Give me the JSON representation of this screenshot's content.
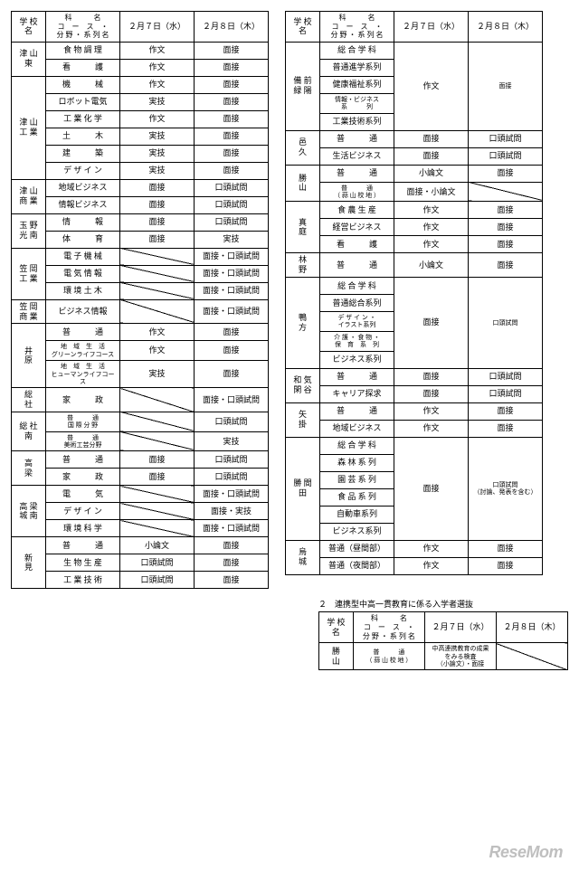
{
  "header": {
    "school": "学 校 名",
    "subject": "科　　　名\nコ　ー　ス　・\n分 野 ・ 系 列 名",
    "day1": "２月７日（水）",
    "day2": "２月８日（木）"
  },
  "left": [
    {
      "school": "津 山 東",
      "rows": [
        {
          "s": "食 物 調 理",
          "d1": "作文",
          "d2": "面接"
        },
        {
          "s": "看　　　護",
          "d1": "作文",
          "d2": "面接"
        }
      ]
    },
    {
      "school": "津 山 工 業",
      "rows": [
        {
          "s": "機　　　械",
          "d1": "作文",
          "d2": "面接"
        },
        {
          "s": "ロボット電気",
          "d1": "実技",
          "d2": "面接"
        },
        {
          "s": "工 業 化 学",
          "d1": "作文",
          "d2": "面接"
        },
        {
          "s": "土　　　木",
          "d1": "実技",
          "d2": "面接"
        },
        {
          "s": "建　　　築",
          "d1": "実技",
          "d2": "面接"
        },
        {
          "s": "デ ザ イ ン",
          "d1": "実技",
          "d2": "面接"
        }
      ]
    },
    {
      "school": "津 山 商 業",
      "rows": [
        {
          "s": "地域ビジネス",
          "d1": "面接",
          "d2": "口頭試問"
        },
        {
          "s": "情報ビジネス",
          "d1": "面接",
          "d2": "口頭試問"
        }
      ]
    },
    {
      "school": "玉 野 光 南",
      "rows": [
        {
          "s": "情　　　報",
          "d1": "面接",
          "d2": "口頭試問"
        },
        {
          "s": "体　　　育",
          "d1": "面接",
          "d2": "実技"
        }
      ]
    },
    {
      "school": "笠 岡 工 業",
      "rows": [
        {
          "s": "電 子 機 械",
          "d1": "DIAG",
          "d2": "面接・口頭試問"
        },
        {
          "s": "電 気 情 報",
          "d1": "DIAG",
          "d2": "面接・口頭試問"
        },
        {
          "s": "環 境 土 木",
          "d1": "DIAG",
          "d2": "面接・口頭試問"
        }
      ]
    },
    {
      "school": "笠 岡 商 業",
      "rows": [
        {
          "s": "ビジネス情報",
          "d1": "DIAG",
          "d2": "面接・口頭試問"
        }
      ]
    },
    {
      "school": "井　　原",
      "rows": [
        {
          "s": "普　　　通",
          "d1": "作文",
          "d2": "面接"
        },
        {
          "s": "地　域　生　活\nグリーンライフコース",
          "d1": "作文",
          "d2": "面接",
          "small": true
        },
        {
          "s": "地　域　生　活\nヒューマンライフコース",
          "d1": "実技",
          "d2": "面接",
          "small": true
        }
      ]
    },
    {
      "school": "総　　社",
      "rows": [
        {
          "s": "家　　　政",
          "d1": "DIAG",
          "d2": "面接・口頭試問"
        }
      ]
    },
    {
      "school": "総 社 南",
      "rows": [
        {
          "s": "普　　　通\n国 際 分 野",
          "d1": "DIAG",
          "d2": "口頭試問",
          "small": true
        },
        {
          "s": "普　　　通\n美術工芸分野",
          "d1": "DIAG",
          "d2": "実技",
          "small": true
        }
      ]
    },
    {
      "school": "高　　梁",
      "rows": [
        {
          "s": "普　　　通",
          "d1": "面接",
          "d2": "口頭試問"
        },
        {
          "s": "家　　　政",
          "d1": "面接",
          "d2": "口頭試問"
        }
      ]
    },
    {
      "school": "高 梁 城 南",
      "rows": [
        {
          "s": "電　　　気",
          "d1": "DIAG",
          "d2": "面接・口頭試問"
        },
        {
          "s": "デ ザ イ ン",
          "d1": "DIAG",
          "d2": "面接・実技"
        },
        {
          "s": "環 境 科 学",
          "d1": "DIAG",
          "d2": "面接・口頭試問"
        }
      ]
    },
    {
      "school": "新　　見",
      "rows": [
        {
          "s": "普　　　通",
          "d1": "小論文",
          "d2": "面接"
        },
        {
          "s": "生 物 生 産",
          "d1": "口頭試問",
          "d2": "面接"
        },
        {
          "s": "工 業 技 術",
          "d1": "口頭試問",
          "d2": "面接"
        }
      ]
    }
  ],
  "right": [
    {
      "school": "備 前 緑 陽",
      "merge": true,
      "d1": "作文",
      "d2": "面接",
      "rows": [
        {
          "s": "総 合 学 科"
        },
        {
          "s": "普通進学系列"
        },
        {
          "s": "健康福祉系列"
        },
        {
          "s": "情報・ビジネス\n系　　　列",
          "small": true
        },
        {
          "s": "工業技術系列"
        }
      ]
    },
    {
      "school": "邑　　久",
      "rows": [
        {
          "s": "普　　　通",
          "d1": "面接",
          "d2": "口頭試問"
        },
        {
          "s": "生活ビジネス",
          "d1": "面接",
          "d2": "口頭試問"
        }
      ]
    },
    {
      "school": "勝　　山",
      "rows": [
        {
          "s": "普　　　通",
          "d1": "小論文",
          "d2": "面接"
        },
        {
          "s": "普　　　通\n（ 蒜 山 校 地 ）",
          "d1": "面接・小論文",
          "d2": "DIAG",
          "small": true
        }
      ]
    },
    {
      "school": "真　　庭",
      "rows": [
        {
          "s": "食 農 生 産",
          "d1": "作文",
          "d2": "面接"
        },
        {
          "s": "経営ビジネス",
          "d1": "作文",
          "d2": "面接"
        },
        {
          "s": "看　　　護",
          "d1": "作文",
          "d2": "面接"
        }
      ]
    },
    {
      "school": "林　　野",
      "rows": [
        {
          "s": "普　　　通",
          "d1": "小論文",
          "d2": "面接"
        }
      ]
    },
    {
      "school": "鴨　　方",
      "merge": true,
      "d1": "面接",
      "d2": "口頭試問",
      "rows": [
        {
          "s": "総 合 学 科"
        },
        {
          "s": "普通総合系列"
        },
        {
          "s": "デ ザ イ ン ・\nイラスト系列",
          "small": true
        },
        {
          "s": "介 護 ・ 食 物 ・\n保　育　系　列",
          "small": true
        },
        {
          "s": "ビジネス系列"
        }
      ]
    },
    {
      "school": "和 気 閑 谷",
      "rows": [
        {
          "s": "普　　　通",
          "d1": "面接",
          "d2": "口頭試問"
        },
        {
          "s": "キャリア探求",
          "d1": "面接",
          "d2": "口頭試問"
        }
      ]
    },
    {
      "school": "矢　　掛",
      "rows": [
        {
          "s": "普　　　通",
          "d1": "作文",
          "d2": "面接"
        },
        {
          "s": "地域ビジネス",
          "d1": "作文",
          "d2": "面接"
        }
      ]
    },
    {
      "school": "勝 間 田",
      "merge": true,
      "d1": "面接",
      "d2": "口頭試問\n（討論、発表を含む）",
      "rows": [
        {
          "s": "総 合 学 科"
        },
        {
          "s": "森 林 系 列"
        },
        {
          "s": "園 芸 系 列"
        },
        {
          "s": "食 品 系 列"
        },
        {
          "s": "自動車系列"
        },
        {
          "s": "ビジネス系列"
        }
      ]
    },
    {
      "school": "烏　　城",
      "rows": [
        {
          "s": "普通（昼間部）",
          "d1": "作文",
          "d2": "面接"
        },
        {
          "s": "普通（夜間部）",
          "d1": "作文",
          "d2": "面接"
        }
      ]
    }
  ],
  "sub": {
    "caption": "２　連携型中高一貫教育に係る入学者選抜",
    "rows": [
      {
        "school": "勝　　山",
        "s": "普　　　通\n（ 蒜 山 校 地 ）",
        "d1": "中高連携教育の成果\nをみる検査\n（小論文）・面接",
        "d2": "DIAG",
        "small": true
      }
    ]
  },
  "logo": "ReseMom"
}
